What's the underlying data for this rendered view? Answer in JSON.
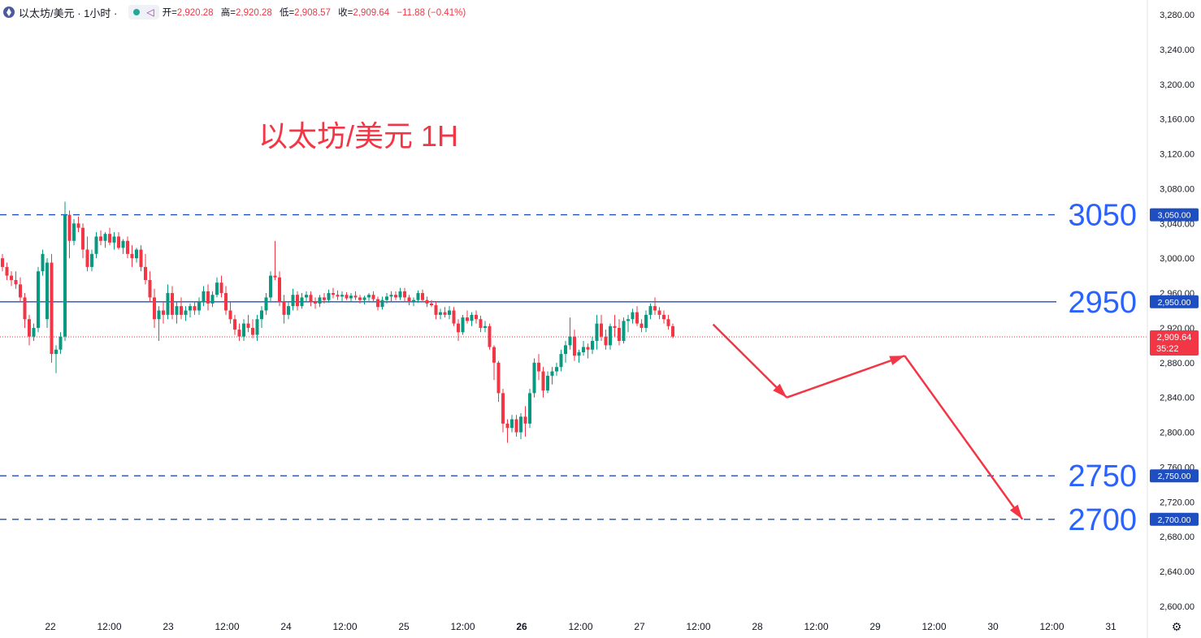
{
  "header": {
    "symbol": "以太坊/美元 · 1小时 ·",
    "open_label": "开=",
    "open": "2,920.28",
    "high_label": "高=",
    "high": "2,920.28",
    "low_label": "低=",
    "low": "2,908.57",
    "close_label": "收=",
    "close": "2,909.64",
    "change": "−11.88 (−0.41%)"
  },
  "icons": {
    "coin": "ethereum-icon",
    "status": "market-status-dot-icon",
    "indicator": "indicator-icon",
    "settings": "gear-icon"
  },
  "colors": {
    "up": "#089981",
    "down": "#f23645",
    "hline": "#1e4ebf",
    "annotation": "#f23645",
    "level_text": "#2962ff"
  },
  "chart_data": {
    "type": "candlestick",
    "title": "以太坊/美元 1H",
    "ylim": [
      2580,
      3300
    ],
    "y_ticks": [
      "3,280.00",
      "3,240.00",
      "3,200.00",
      "3,160.00",
      "3,120.00",
      "3,080.00",
      "3,040.00",
      "3,000.00",
      "2,960.00",
      "2,920.00",
      "2,880.00",
      "2,840.00",
      "2,800.00",
      "2,760.00",
      "2,720.00",
      "2,680.00",
      "2,640.00",
      "2,600.00"
    ],
    "x_ticks": [
      {
        "label": "22",
        "bold": false
      },
      {
        "label": "12:00",
        "bold": false
      },
      {
        "label": "23",
        "bold": false
      },
      {
        "label": "12:00",
        "bold": false
      },
      {
        "label": "24",
        "bold": false
      },
      {
        "label": "12:00",
        "bold": false
      },
      {
        "label": "25",
        "bold": false
      },
      {
        "label": "12:00",
        "bold": false
      },
      {
        "label": "26",
        "bold": true
      },
      {
        "label": "12:00",
        "bold": false
      },
      {
        "label": "27",
        "bold": false
      },
      {
        "label": "12:00",
        "bold": false
      },
      {
        "label": "28",
        "bold": false
      },
      {
        "label": "12:00",
        "bold": false
      },
      {
        "label": "29",
        "bold": false
      },
      {
        "label": "12:00",
        "bold": false
      },
      {
        "label": "30",
        "bold": false
      },
      {
        "label": "12:00",
        "bold": false
      },
      {
        "label": "31",
        "bold": false
      }
    ],
    "x_start": "2024-09-21 15:00",
    "x_end": "2024-10-01 00:00",
    "levels": [
      {
        "value": 3050,
        "label": "3050",
        "tag": "3,050.00",
        "style": "dashed"
      },
      {
        "value": 2950,
        "label": "2950",
        "tag": "2,950.00",
        "style": "solid"
      },
      {
        "value": 2750,
        "label": "2750",
        "tag": "2,750.00",
        "style": "dashed"
      },
      {
        "value": 2700,
        "label": "2700",
        "tag": "2,700.00",
        "style": "dashed"
      }
    ],
    "last_price": {
      "value": 2909.64,
      "tag": "2,909.64",
      "countdown": "35:22"
    },
    "forecast_arrows": [
      [
        {
          "t": "2024-09-27 15:00",
          "v": 2924
        },
        {
          "t": "2024-09-28 06:00",
          "v": 2840
        }
      ],
      [
        {
          "t": "2024-09-28 06:00",
          "v": 2840
        },
        {
          "t": "2024-09-29 06:00",
          "v": 2888
        }
      ],
      [
        {
          "t": "2024-09-29 06:00",
          "v": 2888
        },
        {
          "t": "2024-09-30 06:00",
          "v": 2700
        }
      ]
    ],
    "candles": [
      [
        3000,
        3005,
        2985,
        2990
      ],
      [
        2990,
        2995,
        2975,
        2980
      ],
      [
        2980,
        2985,
        2968,
        2975
      ],
      [
        2975,
        2985,
        2965,
        2970
      ],
      [
        2970,
        2978,
        2950,
        2955
      ],
      [
        2955,
        2960,
        2920,
        2930
      ],
      [
        2930,
        2935,
        2900,
        2910
      ],
      [
        2910,
        2925,
        2905,
        2920
      ],
      [
        2920,
        2990,
        2915,
        2985
      ],
      [
        2985,
        3010,
        2980,
        3005
      ],
      [
        2930,
        3000,
        2920,
        2995
      ],
      [
        2995,
        3005,
        2880,
        2890
      ],
      [
        2890,
        2900,
        2868,
        2895
      ],
      [
        2895,
        2915,
        2890,
        2910
      ],
      [
        2910,
        3065,
        2905,
        3050
      ],
      [
        3050,
        3055,
        3000,
        3020
      ],
      [
        3020,
        3045,
        3015,
        3040
      ],
      [
        3040,
        3048,
        3030,
        3035
      ],
      [
        3035,
        3040,
        3000,
        3010
      ],
      [
        3010,
        3025,
        2985,
        2990
      ],
      [
        2990,
        3010,
        2985,
        3005
      ],
      [
        3005,
        3030,
        3000,
        3025
      ],
      [
        3025,
        3032,
        3015,
        3020
      ],
      [
        3020,
        3030,
        3012,
        3028
      ],
      [
        3028,
        3035,
        3015,
        3018
      ],
      [
        3018,
        3030,
        3010,
        3025
      ],
      [
        3025,
        3030,
        3010,
        3012
      ],
      [
        3012,
        3022,
        3005,
        3020
      ],
      [
        3020,
        3025,
        3000,
        3005
      ],
      [
        3005,
        3015,
        2990,
        3000
      ],
      [
        3000,
        3012,
        2995,
        3010
      ],
      [
        3010,
        3015,
        2985,
        2990
      ],
      [
        2990,
        3005,
        2970,
        2975
      ],
      [
        2975,
        2985,
        2950,
        2955
      ],
      [
        2955,
        2965,
        2920,
        2930
      ],
      [
        2930,
        2945,
        2905,
        2940
      ],
      [
        2940,
        2950,
        2925,
        2935
      ],
      [
        2935,
        2970,
        2930,
        2960
      ],
      [
        2960,
        2968,
        2930,
        2935
      ],
      [
        2935,
        2950,
        2925,
        2945
      ],
      [
        2945,
        2955,
        2930,
        2935
      ],
      [
        2935,
        2945,
        2928,
        2940
      ],
      [
        2940,
        2948,
        2932,
        2945
      ],
      [
        2945,
        2950,
        2935,
        2940
      ],
      [
        2940,
        2955,
        2935,
        2950
      ],
      [
        2950,
        2968,
        2945,
        2962
      ],
      [
        2962,
        2970,
        2940,
        2948
      ],
      [
        2948,
        2962,
        2944,
        2958
      ],
      [
        2958,
        2978,
        2955,
        2972
      ],
      [
        2972,
        2980,
        2955,
        2960
      ],
      [
        2960,
        2968,
        2935,
        2940
      ],
      [
        2940,
        2950,
        2925,
        2930
      ],
      [
        2930,
        2935,
        2912,
        2918
      ],
      [
        2918,
        2925,
        2905,
        2910
      ],
      [
        2910,
        2930,
        2905,
        2925
      ],
      [
        2925,
        2935,
        2915,
        2920
      ],
      [
        2920,
        2930,
        2908,
        2912
      ],
      [
        2912,
        2935,
        2905,
        2930
      ],
      [
        2930,
        2945,
        2920,
        2940
      ],
      [
        2940,
        2960,
        2935,
        2955
      ],
      [
        2955,
        2985,
        2950,
        2980
      ],
      [
        2980,
        3020,
        2975,
        2978
      ],
      [
        2978,
        2985,
        2945,
        2950
      ],
      [
        2950,
        2958,
        2925,
        2935
      ],
      [
        2935,
        2950,
        2930,
        2945
      ],
      [
        2945,
        2965,
        2940,
        2958
      ],
      [
        2958,
        2962,
        2940,
        2945
      ],
      [
        2945,
        2960,
        2942,
        2955
      ],
      [
        2955,
        2962,
        2950,
        2958
      ],
      [
        2958,
        2962,
        2945,
        2950
      ],
      [
        2950,
        2955,
        2942,
        2948
      ],
      [
        2948,
        2958,
        2944,
        2955
      ],
      [
        2955,
        2960,
        2948,
        2952
      ],
      [
        2952,
        2964,
        2949,
        2960
      ],
      [
        2960,
        2966,
        2954,
        2958
      ],
      [
        2958,
        2963,
        2952,
        2956
      ],
      [
        2956,
        2962,
        2950,
        2958
      ],
      [
        2958,
        2961,
        2952,
        2954
      ],
      [
        2954,
        2960,
        2950,
        2957
      ],
      [
        2957,
        2962,
        2952,
        2955
      ],
      [
        2955,
        2958,
        2948,
        2952
      ],
      [
        2952,
        2957,
        2947,
        2955
      ],
      [
        2955,
        2960,
        2951,
        2958
      ],
      [
        2958,
        2962,
        2950,
        2953
      ],
      [
        2953,
        2956,
        2940,
        2944
      ],
      [
        2944,
        2956,
        2941,
        2952
      ],
      [
        2952,
        2960,
        2948,
        2956
      ],
      [
        2956,
        2962,
        2950,
        2958
      ],
      [
        2958,
        2962,
        2952,
        2955
      ],
      [
        2955,
        2966,
        2952,
        2962
      ],
      [
        2962,
        2966,
        2950,
        2955
      ],
      [
        2955,
        2958,
        2946,
        2950
      ],
      [
        2950,
        2955,
        2945,
        2952
      ],
      [
        2952,
        2963,
        2949,
        2960
      ],
      [
        2960,
        2964,
        2950,
        2952
      ],
      [
        2952,
        2956,
        2944,
        2948
      ],
      [
        2948,
        2952,
        2944,
        2946
      ],
      [
        2946,
        2950,
        2930,
        2935
      ],
      [
        2935,
        2942,
        2930,
        2938
      ],
      [
        2938,
        2944,
        2932,
        2935
      ],
      [
        2935,
        2945,
        2930,
        2940
      ],
      [
        2940,
        2944,
        2922,
        2925
      ],
      [
        2925,
        2930,
        2905,
        2915
      ],
      [
        2915,
        2935,
        2912,
        2932
      ],
      [
        2932,
        2940,
        2925,
        2928
      ],
      [
        2928,
        2938,
        2922,
        2935
      ],
      [
        2935,
        2940,
        2925,
        2930
      ],
      [
        2930,
        2934,
        2915,
        2920
      ],
      [
        2920,
        2928,
        2915,
        2922
      ],
      [
        2922,
        2925,
        2895,
        2898
      ],
      [
        2898,
        2900,
        2860,
        2880
      ],
      [
        2880,
        2882,
        2835,
        2845
      ],
      [
        2845,
        2850,
        2800,
        2810
      ],
      [
        2810,
        2815,
        2788,
        2805
      ],
      [
        2805,
        2820,
        2800,
        2815
      ],
      [
        2815,
        2820,
        2795,
        2800
      ],
      [
        2800,
        2822,
        2792,
        2818
      ],
      [
        2818,
        2830,
        2795,
        2810
      ],
      [
        2810,
        2850,
        2805,
        2845
      ],
      [
        2845,
        2885,
        2840,
        2880
      ],
      [
        2880,
        2890,
        2860,
        2870
      ],
      [
        2870,
        2875,
        2840,
        2848
      ],
      [
        2848,
        2870,
        2845,
        2865
      ],
      [
        2865,
        2875,
        2855,
        2870
      ],
      [
        2870,
        2880,
        2865,
        2875
      ],
      [
        2875,
        2895,
        2870,
        2890
      ],
      [
        2890,
        2905,
        2880,
        2900
      ],
      [
        2900,
        2932,
        2895,
        2910
      ],
      [
        2910,
        2918,
        2882,
        2888
      ],
      [
        2888,
        2895,
        2880,
        2892
      ],
      [
        2892,
        2905,
        2888,
        2898
      ],
      [
        2898,
        2902,
        2885,
        2895
      ],
      [
        2895,
        2910,
        2890,
        2905
      ],
      [
        2905,
        2935,
        2895,
        2925
      ],
      [
        2925,
        2935,
        2905,
        2910
      ],
      [
        2910,
        2918,
        2895,
        2900
      ],
      [
        2900,
        2925,
        2895,
        2922
      ],
      [
        2922,
        2935,
        2910,
        2920
      ],
      [
        2920,
        2930,
        2900,
        2905
      ],
      [
        2905,
        2932,
        2902,
        2928
      ],
      [
        2928,
        2935,
        2915,
        2930
      ],
      [
        2930,
        2942,
        2925,
        2938
      ],
      [
        2938,
        2945,
        2922,
        2925
      ],
      [
        2925,
        2930,
        2915,
        2920
      ],
      [
        2920,
        2940,
        2915,
        2935
      ],
      [
        2935,
        2948,
        2930,
        2945
      ],
      [
        2945,
        2955,
        2935,
        2940
      ],
      [
        2940,
        2944,
        2930,
        2935
      ],
      [
        2935,
        2940,
        2925,
        2930
      ],
      [
        2930,
        2935,
        2918,
        2922
      ],
      [
        2922,
        2925,
        2908,
        2910
      ]
    ]
  }
}
